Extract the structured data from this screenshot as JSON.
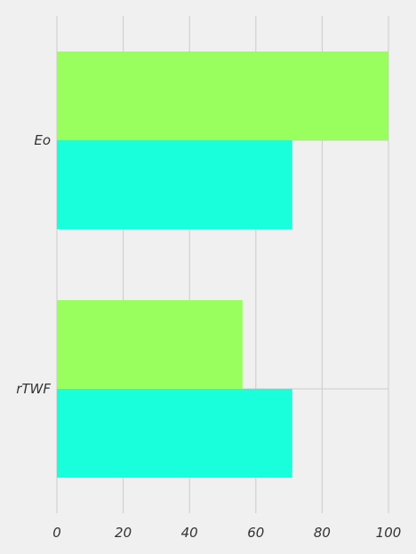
{
  "chart_data": {
    "type": "bar",
    "orientation": "horizontal",
    "categories": [
      "rTWF",
      "Eo"
    ],
    "series": [
      {
        "values": [
          56,
          100
        ],
        "color": "#99ff5e"
      },
      {
        "values": [
          71,
          71
        ],
        "color": "#19ffdb"
      }
    ],
    "xlim": [
      0,
      100
    ],
    "xticks": [
      "0",
      "20",
      "40",
      "60",
      "80",
      "100"
    ],
    "grid": true,
    "background": "#f0f0f0",
    "title": "",
    "xlabel": "",
    "ylabel": ""
  }
}
